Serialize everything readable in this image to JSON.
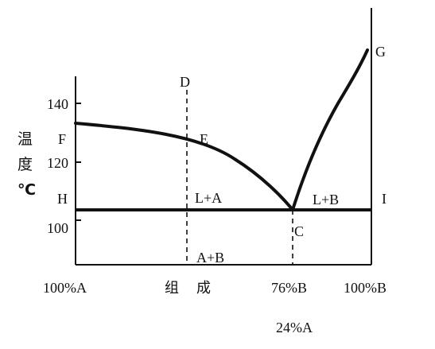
{
  "y_axis": {
    "label_chars": [
      "温",
      "度",
      "℃"
    ],
    "ticks": [
      "140",
      "120",
      "100"
    ]
  },
  "points": {
    "D": "D",
    "E": "E",
    "F": "F",
    "G": "G",
    "H": "H",
    "I": "I",
    "C": "C"
  },
  "regions": {
    "liquid_a": "L+A",
    "liquid_b": "L+B",
    "solid": "A+B"
  },
  "x_axis": {
    "left": "100%A",
    "middle_chars": [
      "组",
      "成"
    ],
    "eutectic_b": "76%B",
    "eutectic_a": "24%A",
    "right": "100%B"
  },
  "colors": {
    "line": "#111111",
    "background": "#ffffff"
  }
}
